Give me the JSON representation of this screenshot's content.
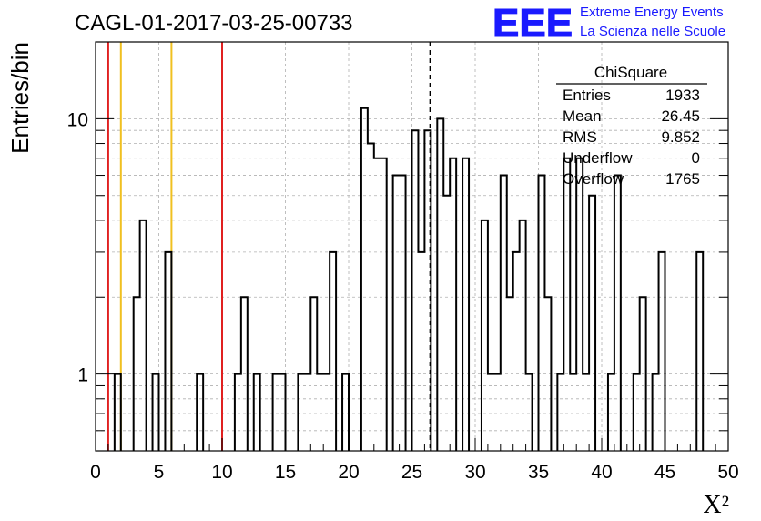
{
  "chart_data": {
    "type": "histogram",
    "title": "CAGL-01-2017-03-25-00733",
    "xlabel": "X²",
    "ylabel": "Entries/bin",
    "xlim": [
      0,
      50
    ],
    "ylim": [
      0.5,
      20
    ],
    "y_scale": "log",
    "grid": true,
    "bin_width": 0.5,
    "x_ticks": [
      "0",
      "5",
      "10",
      "15",
      "20",
      "25",
      "30",
      "35",
      "40",
      "45",
      "50"
    ],
    "y_ticks": [
      "1",
      "10"
    ],
    "bins": [
      {
        "x": 1.5,
        "value": 1
      },
      {
        "x": 3.0,
        "value": 2
      },
      {
        "x": 3.5,
        "value": 4
      },
      {
        "x": 4.5,
        "value": 1
      },
      {
        "x": 5.5,
        "value": 3
      },
      {
        "x": 8.0,
        "value": 1
      },
      {
        "x": 11.0,
        "value": 1
      },
      {
        "x": 11.5,
        "value": 2
      },
      {
        "x": 12.5,
        "value": 1
      },
      {
        "x": 14.0,
        "value": 1
      },
      {
        "x": 14.5,
        "value": 1
      },
      {
        "x": 16.0,
        "value": 1
      },
      {
        "x": 16.5,
        "value": 1
      },
      {
        "x": 17.0,
        "value": 2
      },
      {
        "x": 17.5,
        "value": 1
      },
      {
        "x": 18.0,
        "value": 1
      },
      {
        "x": 18.5,
        "value": 3
      },
      {
        "x": 19.5,
        "value": 1
      },
      {
        "x": 21.0,
        "value": 11
      },
      {
        "x": 21.5,
        "value": 8
      },
      {
        "x": 22.0,
        "value": 7
      },
      {
        "x": 22.5,
        "value": 7
      },
      {
        "x": 23.5,
        "value": 6
      },
      {
        "x": 24.0,
        "value": 6
      },
      {
        "x": 25.0,
        "value": 9
      },
      {
        "x": 25.5,
        "value": 3
      },
      {
        "x": 26.0,
        "value": 9
      },
      {
        "x": 27.0,
        "value": 10
      },
      {
        "x": 27.5,
        "value": 5
      },
      {
        "x": 28.0,
        "value": 7
      },
      {
        "x": 29.0,
        "value": 7
      },
      {
        "x": 30.5,
        "value": 4
      },
      {
        "x": 31.0,
        "value": 1
      },
      {
        "x": 31.5,
        "value": 1
      },
      {
        "x": 32.0,
        "value": 6
      },
      {
        "x": 32.5,
        "value": 2
      },
      {
        "x": 33.0,
        "value": 3
      },
      {
        "x": 33.5,
        "value": 4
      },
      {
        "x": 34.0,
        "value": 1
      },
      {
        "x": 35.0,
        "value": 6
      },
      {
        "x": 35.5,
        "value": 2
      },
      {
        "x": 36.5,
        "value": 1
      },
      {
        "x": 37.0,
        "value": 7
      },
      {
        "x": 37.5,
        "value": 1
      },
      {
        "x": 38.0,
        "value": 7
      },
      {
        "x": 38.5,
        "value": 1
      },
      {
        "x": 39.0,
        "value": 5
      },
      {
        "x": 40.5,
        "value": 1
      },
      {
        "x": 41.0,
        "value": 6
      },
      {
        "x": 42.5,
        "value": 1
      },
      {
        "x": 43.0,
        "value": 2
      },
      {
        "x": 44.0,
        "value": 1
      },
      {
        "x": 44.5,
        "value": 3
      },
      {
        "x": 47.5,
        "value": 3
      }
    ],
    "reference_lines": [
      {
        "x": 1.0,
        "color": "#e02020",
        "style": "solid"
      },
      {
        "x": 2.0,
        "color": "#f0c020",
        "style": "solid"
      },
      {
        "x": 6.0,
        "color": "#f0c020",
        "style": "solid"
      },
      {
        "x": 10.0,
        "color": "#e02020",
        "style": "solid"
      },
      {
        "x": 26.45,
        "color": "#000000",
        "style": "dashed"
      }
    ],
    "stats_box": {
      "title": "ChiSquare",
      "rows": [
        {
          "label": "Entries",
          "value": "1933"
        },
        {
          "label": "Mean",
          "value": "26.45"
        },
        {
          "label": "RMS",
          "value": "9.852"
        },
        {
          "label": "Underflow",
          "value": "0"
        },
        {
          "label": "Overflow",
          "value": "1765"
        }
      ]
    }
  },
  "logo": {
    "text": "EEE",
    "line1": "Extreme Energy Events",
    "line2": "La Scienza nelle Scuole",
    "color": "#1a1aff"
  },
  "colors": {
    "histogram": "#000000",
    "grid": "#b0b0b0",
    "axis": "#000000"
  }
}
